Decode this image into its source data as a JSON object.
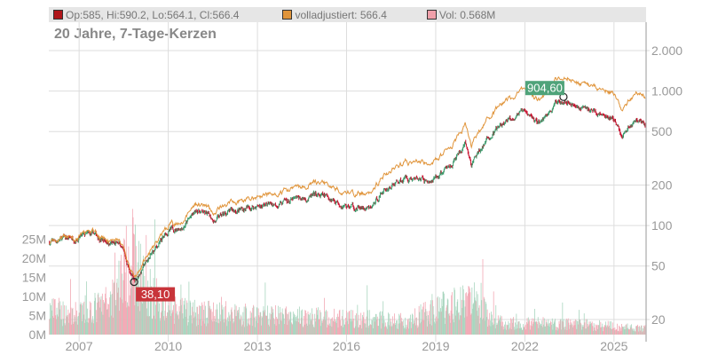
{
  "legend": {
    "ohlc": "Op:585, Hi:590.2, Lo:564.1, Cl:566.4",
    "adjusted": "volladjustiert: 566.4",
    "volume": "Vol: 0.568M",
    "colors": {
      "ohlc": "#b0151a",
      "adjusted": "#e0943a",
      "volume": "#f0a0aa"
    }
  },
  "title": "20 Jahre, 7-Tage-Kerzen",
  "chart_data": {
    "type": "line",
    "title": "20 Jahre, 7-Tage-Kerzen",
    "yscale": "log",
    "ylim": [
      17,
      2600
    ],
    "xlim": [
      2005.98,
      2026.08
    ],
    "x_ticks": [
      "2007",
      "2010",
      "2013",
      "2016",
      "2019",
      "2022",
      "2025"
    ],
    "x_tick_values": [
      2007,
      2010,
      2013,
      2016,
      2019,
      2022,
      2025
    ],
    "y_ticks": [
      "2.000",
      "1.000",
      "500",
      "200",
      "100",
      "50",
      "20"
    ],
    "y_tick_values": [
      2000,
      1000,
      500,
      200,
      100,
      50,
      20
    ],
    "vol_ticks": [
      "25M",
      "20M",
      "15M",
      "10M",
      "5M",
      "0M"
    ],
    "vol_tick_values": [
      25,
      20,
      15,
      10,
      5,
      0
    ],
    "price_keypoints": [
      [
        2006,
        75
      ],
      [
        2006.5,
        80
      ],
      [
        2007,
        82
      ],
      [
        2007.5,
        85
      ],
      [
        2008,
        75
      ],
      [
        2008.4,
        70
      ],
      [
        2008.85,
        38.1
      ],
      [
        2009.3,
        55
      ],
      [
        2010,
        90
      ],
      [
        2010.5,
        100
      ],
      [
        2011,
        130
      ],
      [
        2011.6,
        110
      ],
      [
        2012,
        125
      ],
      [
        2013,
        140
      ],
      [
        2014,
        150
      ],
      [
        2015,
        165
      ],
      [
        2015.5,
        160
      ],
      [
        2016,
        140
      ],
      [
        2016.8,
        130
      ],
      [
        2017.2,
        180
      ],
      [
        2018,
        230
      ],
      [
        2018.9,
        210
      ],
      [
        2019.5,
        280
      ],
      [
        2020,
        390
      ],
      [
        2020.2,
        280
      ],
      [
        2020.6,
        400
      ],
      [
        2021,
        500
      ],
      [
        2021.8,
        700
      ],
      [
        2022.2,
        640
      ],
      [
        2022.5,
        580
      ],
      [
        2023,
        780
      ],
      [
        2023.3,
        904.6
      ],
      [
        2023.8,
        760
      ],
      [
        2024.3,
        720
      ],
      [
        2024.7,
        640
      ],
      [
        2025,
        620
      ],
      [
        2025.25,
        460
      ],
      [
        2025.5,
        540
      ],
      [
        2025.8,
        630
      ],
      [
        2026.05,
        566.4
      ]
    ],
    "adjusted_final_ratio": 1.6,
    "volume_keypoints_M": [
      [
        2006,
        6
      ],
      [
        2007,
        5
      ],
      [
        2008,
        8
      ],
      [
        2008.8,
        20
      ],
      [
        2009.2,
        12
      ],
      [
        2010,
        6
      ],
      [
        2012,
        5
      ],
      [
        2016,
        4
      ],
      [
        2018,
        3.5
      ],
      [
        2020.2,
        9
      ],
      [
        2021,
        3
      ],
      [
        2024,
        2.5
      ],
      [
        2026,
        1.5
      ]
    ],
    "annotations": [
      {
        "label": "904,60",
        "x": 2023.3,
        "y": 904.6,
        "kind": "high"
      },
      {
        "label": "38,10",
        "x": 2008.85,
        "y": 38.1,
        "kind": "low"
      }
    ],
    "colors": {
      "up": "#3c9a6c",
      "down": "#c8102e",
      "adjusted": "#e0943a",
      "vol_up": "#a8d5be",
      "vol_down": "#f2a8b4",
      "grid": "#dddddd"
    }
  }
}
